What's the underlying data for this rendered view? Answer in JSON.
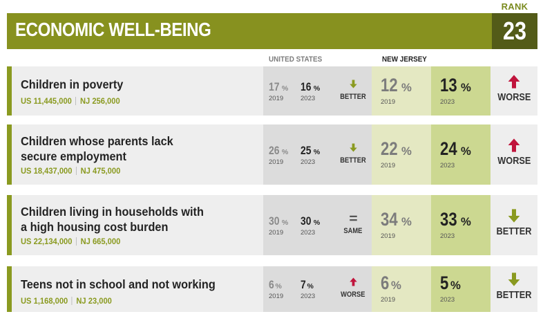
{
  "rank_label": "RANK",
  "rank": "23",
  "title": "ECONOMIC WELL-BEING",
  "columns": {
    "us": "UNITED STATES",
    "nj": "NEW JERSEY"
  },
  "colors": {
    "olive": "#87911f",
    "dark_olive": "#535b18",
    "worse": "#c0143c",
    "better": "#8a9a20"
  },
  "rows": [
    {
      "title_lines": [
        "Children in poverty",
        ""
      ],
      "us_label": "US",
      "us_count": "11,445,000",
      "nj_label": "NJ",
      "nj_count": "256,000",
      "us_2019": "17",
      "us_2023": "16",
      "us_trend": "BETTER",
      "us_trend_icon": "arrow-down-icon",
      "nj_2019": "12",
      "nj_2023": "13",
      "nj_trend": "WORSE",
      "nj_trend_icon": "arrow-up-icon",
      "year_a": "2019",
      "year_b": "2023"
    },
    {
      "title_lines": [
        "Children whose parents lack",
        "secure employment"
      ],
      "us_label": "US",
      "us_count": "18,437,000",
      "nj_label": "NJ",
      "nj_count": "475,000",
      "us_2019": "26",
      "us_2023": "25",
      "us_trend": "BETTER",
      "us_trend_icon": "arrow-down-icon",
      "nj_2019": "22",
      "nj_2023": "24",
      "nj_trend": "WORSE",
      "nj_trend_icon": "arrow-up-icon",
      "year_a": "2019",
      "year_b": "2023"
    },
    {
      "title_lines": [
        "Children living in households with",
        "a high housing cost burden"
      ],
      "us_label": "US",
      "us_count": "22,134,000",
      "nj_label": "NJ",
      "nj_count": "665,000",
      "us_2019": "30",
      "us_2023": "30",
      "us_trend": "SAME",
      "us_trend_icon": "equals-icon",
      "nj_2019": "34",
      "nj_2023": "33",
      "nj_trend": "BETTER",
      "nj_trend_icon": "arrow-down-icon",
      "year_a": "2019",
      "year_b": "2023"
    },
    {
      "title_lines": [
        "Teens not in school and not working",
        ""
      ],
      "us_label": "US",
      "us_count": "1,168,000",
      "nj_label": "NJ",
      "nj_count": "23,000",
      "us_2019": "6",
      "us_2023": "7",
      "us_trend": "WORSE",
      "us_trend_icon": "arrow-up-icon",
      "nj_2019": "6",
      "nj_2023": "5",
      "nj_trend": "BETTER",
      "nj_trend_icon": "arrow-down-icon",
      "year_a": "2019",
      "year_b": "2023"
    }
  ],
  "pct_sign": "%"
}
